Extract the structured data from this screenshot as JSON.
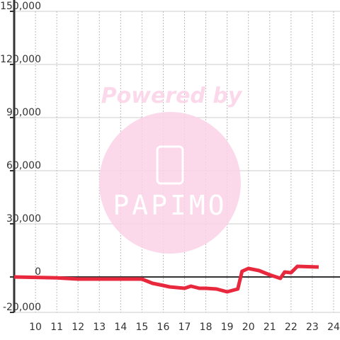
{
  "chart_data": {
    "type": "line",
    "watermark": {
      "line1": "Powered by",
      "line2": "PAPIMO"
    },
    "x": [
      9,
      11,
      12,
      13,
      14,
      15,
      15.5,
      16,
      16.3,
      17,
      17.3,
      17.7,
      18,
      18.5,
      19,
      19.5,
      19.7,
      20,
      20.5,
      21,
      21.5,
      21.7,
      22,
      22.3,
      23.3
    ],
    "series": [
      {
        "color": "#e8283c",
        "values": [
          0,
          -500,
          -1200,
          -1200,
          -1200,
          -1200,
          -3600,
          -4800,
          -5600,
          -6400,
          -5200,
          -6400,
          -6400,
          -6800,
          -8400,
          -6800,
          3200,
          4800,
          3600,
          1200,
          -800,
          2800,
          2400,
          6000,
          5600
        ]
      }
    ],
    "xlim": [
      9,
      24.3
    ],
    "xticks": [
      10,
      11,
      12,
      13,
      14,
      15,
      16,
      17,
      18,
      19,
      20,
      21,
      22,
      23,
      24
    ],
    "ylim": [
      -20000,
      150000
    ],
    "yticks": [
      {
        "value": -20000,
        "label": "-20,000"
      },
      0,
      {
        "value": 30000,
        "label": "30,000"
      },
      {
        "value": 60000,
        "label": "60,000"
      },
      {
        "value": 90000,
        "label": "90,000"
      },
      {
        "value": 120000,
        "label": "120,000"
      },
      {
        "value": 150000,
        "label": "150,000"
      }
    ],
    "grid": true
  }
}
